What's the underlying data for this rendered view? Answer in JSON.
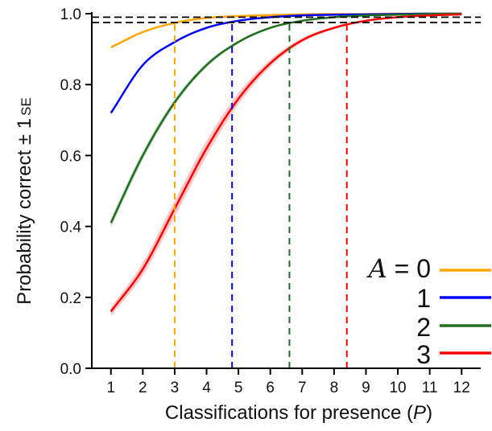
{
  "chart_data": {
    "type": "line",
    "xlabel_main": "Classifications for presence (",
    "xlabel_var": "P",
    "xlabel_end": ")",
    "ylabel_main": "Probability correct ± 1",
    "ylabel_sub": "SE",
    "xlim": [
      0.4,
      12.6
    ],
    "ylim": [
      0.0,
      1.0
    ],
    "xticks": [
      1,
      2,
      3,
      4,
      5,
      6,
      7,
      8,
      9,
      10,
      11,
      12
    ],
    "yticks": [
      "0.0",
      "0.2",
      "0.4",
      "0.6",
      "0.8",
      "1.0"
    ],
    "x": [
      1,
      2,
      3,
      4,
      5,
      6,
      7,
      8,
      9,
      10,
      11,
      12
    ],
    "legend_var": "A",
    "legend_eq": " = 0",
    "series": [
      {
        "name": "0",
        "color": "#ffa500",
        "band": 0.0,
        "values": [
          0.905,
          0.948,
          0.974,
          0.988,
          0.993,
          0.996,
          0.998,
          0.999,
          0.999,
          1.0,
          1.0,
          1.0
        ],
        "threshold_x": 3.0
      },
      {
        "name": "1",
        "color": "#0000ff",
        "band": 0.004,
        "values": [
          0.72,
          0.855,
          0.92,
          0.96,
          0.98,
          0.99,
          0.995,
          0.997,
          0.998,
          0.999,
          1.0,
          1.0
        ],
        "threshold_x": 4.8
      },
      {
        "name": "2",
        "color": "#1e6e1e",
        "band": 0.012,
        "values": [
          0.41,
          0.6,
          0.75,
          0.855,
          0.92,
          0.96,
          0.98,
          0.99,
          0.995,
          0.997,
          0.999,
          1.0
        ],
        "threshold_x": 6.6
      },
      {
        "name": "3",
        "color": "#ff0000",
        "band": 0.022,
        "values": [
          0.16,
          0.28,
          0.45,
          0.62,
          0.76,
          0.86,
          0.925,
          0.96,
          0.98,
          0.99,
          0.995,
          0.998
        ],
        "threshold_x": 8.4
      }
    ],
    "reference_lines_y": [
      0.975,
      0.99
    ],
    "grid": false,
    "legend_position": "bottom-right"
  }
}
